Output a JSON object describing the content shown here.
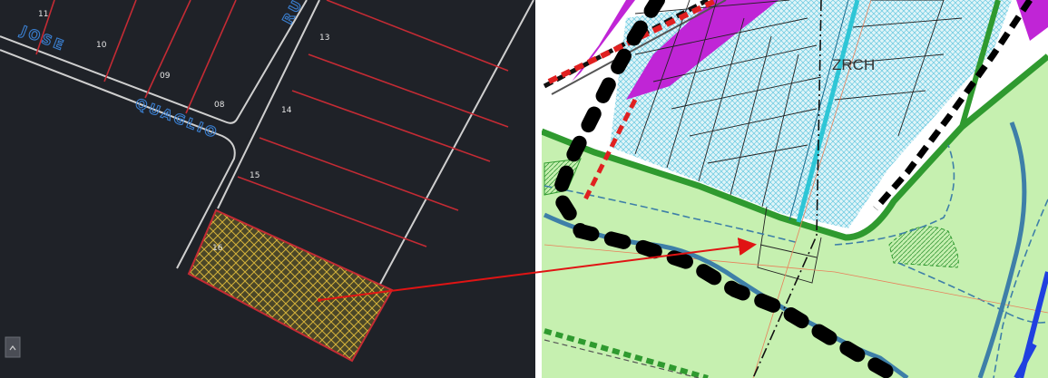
{
  "colors": {
    "cad_background": "#1f2228",
    "cad_lot_line": "#c42b34",
    "cad_street_edge": "#cfcfcf",
    "cad_street_text": "#3a7fd0",
    "cad_hatch": "#d4b23a",
    "map_green_fill": "#c6f0b0",
    "map_green_edge": "#2f9a2f",
    "map_blue_hatch": "#67c8e0",
    "map_cyan_road": "#2ec6d6",
    "map_magenta": "#c025d6",
    "map_red_dash": "#e02020",
    "map_river": "#3e7fa8",
    "arrow": "#e01414"
  },
  "cad": {
    "street_label_1": "JOSE",
    "street_label_2": "QUAGLIO",
    "street_label_3": "RU",
    "lot_numbers": {
      "n11": "11",
      "n10": "10",
      "n09": "09",
      "n08": "08",
      "n13": "13",
      "n14": "14",
      "n15": "15",
      "n16": "16"
    },
    "corner_button_icon": "toolbar-toggle-icon"
  },
  "map": {
    "zone_label": "ZRCH"
  },
  "arrow": {
    "icon": "arrow-icon"
  }
}
